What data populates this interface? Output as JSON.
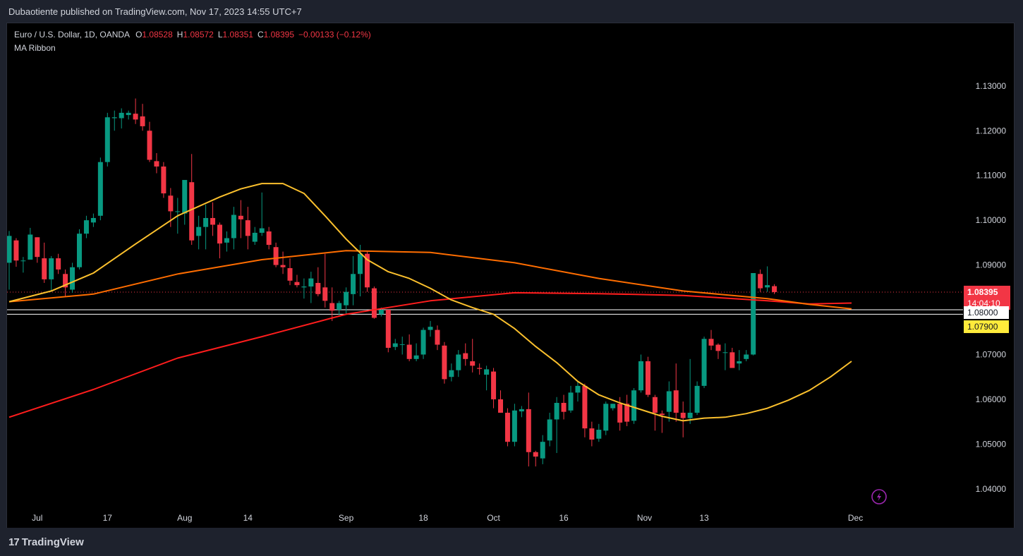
{
  "header": {
    "publisher": "Dubaotiente published on TradingView.com, Nov 17, 2023 14:55 UTC+7"
  },
  "legend": {
    "symbol": "Euro / U.S. Dollar, 1D, OANDA",
    "open_label": "O",
    "open": "1.08528",
    "high_label": "H",
    "high": "1.08572",
    "low_label": "L",
    "low": "1.08351",
    "close_label": "C",
    "close": "1.08395",
    "change": "−0.00133 (−0.12%)",
    "indicator": "MA Ribbon"
  },
  "footer": {
    "brand": "TradingView",
    "brand_icon": "tradingview-logo-icon"
  },
  "colors": {
    "up": "#089981",
    "down": "#f23645",
    "ma_fast": "#fbc02d",
    "ma_mid": "#ff6d00",
    "ma_slow": "#ff1d1d",
    "level_line": "#ffffff",
    "background": "#000000"
  },
  "chart_data": {
    "type": "candlestick",
    "symbol": "EURUSD",
    "timeframe": "1D",
    "x_tick_labels": [
      "Jul",
      "17",
      "Aug",
      "14",
      "Sep",
      "18",
      "Oct",
      "16",
      "Nov",
      "13",
      "Dec"
    ],
    "y_ticks": [
      "1.13000",
      "1.12000",
      "1.11000",
      "1.10000",
      "1.09000",
      "1.07000",
      "1.06000",
      "1.05000",
      "1.04000"
    ],
    "ylim": [
      1.0365,
      1.144
    ],
    "last_price": "1.08395",
    "countdown": "14:04:10",
    "price_levels": [
      {
        "value": 1.08,
        "label": "1.08000",
        "color": "#ffffff"
      },
      {
        "value": 1.079,
        "label": "1.07900",
        "color": "#ffeb3b"
      }
    ],
    "candles": [
      {
        "d": "2023-06-27",
        "o": 1.0905,
        "h": 1.0976,
        "l": 1.0845,
        "c": 1.0965
      },
      {
        "d": "2023-06-28",
        "o": 1.0955,
        "h": 1.096,
        "l": 1.0896,
        "c": 1.091
      },
      {
        "d": "2023-06-29",
        "o": 1.091,
        "h": 1.0918,
        "l": 1.0883,
        "c": 1.091
      },
      {
        "d": "2023-06-30",
        "o": 1.0912,
        "h": 1.0983,
        "l": 1.0915,
        "c": 1.0968
      },
      {
        "d": "2023-07-03",
        "o": 1.0962,
        "h": 1.0962,
        "l": 1.0905,
        "c": 1.0918
      },
      {
        "d": "2023-07-04",
        "o": 1.0915,
        "h": 1.095,
        "l": 1.086,
        "c": 1.0868
      },
      {
        "d": "2023-07-05",
        "o": 1.0868,
        "h": 1.092,
        "l": 1.084,
        "c": 1.0915
      },
      {
        "d": "2023-07-06",
        "o": 1.0915,
        "h": 1.0925,
        "l": 1.088,
        "c": 1.089
      },
      {
        "d": "2023-07-07",
        "o": 1.088,
        "h": 1.089,
        "l": 1.083,
        "c": 1.085
      },
      {
        "d": "2023-07-10",
        "o": 1.0845,
        "h": 1.0905,
        "l": 1.0838,
        "c": 1.0895
      },
      {
        "d": "2023-07-11",
        "o": 1.0895,
        "h": 1.098,
        "l": 1.089,
        "c": 1.097
      },
      {
        "d": "2023-07-12",
        "o": 1.097,
        "h": 1.101,
        "l": 1.096,
        "c": 1.1
      },
      {
        "d": "2023-07-13",
        "o": 1.0995,
        "h": 1.1015,
        "l": 1.0985,
        "c": 1.1005
      },
      {
        "d": "2023-07-14",
        "o": 1.101,
        "h": 1.114,
        "l": 1.1,
        "c": 1.113
      },
      {
        "d": "2023-07-17",
        "o": 1.113,
        "h": 1.124,
        "l": 1.112,
        "c": 1.123
      },
      {
        "d": "2023-07-18",
        "o": 1.1228,
        "h": 1.1245,
        "l": 1.12,
        "c": 1.123
      },
      {
        "d": "2023-07-19",
        "o": 1.1228,
        "h": 1.125,
        "l": 1.1205,
        "c": 1.124
      },
      {
        "d": "2023-07-20",
        "o": 1.1235,
        "h": 1.1245,
        "l": 1.1225,
        "c": 1.124
      },
      {
        "d": "2023-07-21",
        "o": 1.1238,
        "h": 1.1272,
        "l": 1.1215,
        "c": 1.1225
      },
      {
        "d": "2023-07-24",
        "o": 1.1232,
        "h": 1.126,
        "l": 1.12,
        "c": 1.121
      },
      {
        "d": "2023-07-25",
        "o": 1.12,
        "h": 1.122,
        "l": 1.113,
        "c": 1.1135
      },
      {
        "d": "2023-07-26",
        "o": 1.1132,
        "h": 1.115,
        "l": 1.1105,
        "c": 1.112
      },
      {
        "d": "2023-07-27",
        "o": 1.112,
        "h": 1.113,
        "l": 1.105,
        "c": 1.106
      },
      {
        "d": "2023-07-28",
        "o": 1.1055,
        "h": 1.1072,
        "l": 1.0985,
        "c": 1.102
      },
      {
        "d": "2023-07-31",
        "o": 1.102,
        "h": 1.105,
        "l": 1.097,
        "c": 1.102
      },
      {
        "d": "2023-08-01",
        "o": 1.1015,
        "h": 1.108,
        "l": 1.099,
        "c": 1.109
      },
      {
        "d": "2023-08-02",
        "o": 1.1085,
        "h": 1.1148,
        "l": 1.0945,
        "c": 1.0955
      },
      {
        "d": "2023-08-03",
        "o": 1.0965,
        "h": 1.101,
        "l": 1.0935,
        "c": 1.0985
      },
      {
        "d": "2023-08-04",
        "o": 1.0985,
        "h": 1.1035,
        "l": 1.0935,
        "c": 1.1005
      },
      {
        "d": "2023-08-07",
        "o": 1.1005,
        "h": 1.104,
        "l": 1.0965,
        "c": 1.099
      },
      {
        "d": "2023-08-08",
        "o": 1.099,
        "h": 1.0995,
        "l": 1.0915,
        "c": 1.0948
      },
      {
        "d": "2023-08-09",
        "o": 1.095,
        "h": 1.0975,
        "l": 1.093,
        "c": 1.096
      },
      {
        "d": "2023-08-10",
        "o": 1.096,
        "h": 1.103,
        "l": 1.0935,
        "c": 1.1012
      },
      {
        "d": "2023-08-11",
        "o": 1.101,
        "h": 1.1045,
        "l": 1.096,
        "c": 1.1002
      },
      {
        "d": "2023-08-14",
        "o": 1.1,
        "h": 1.103,
        "l": 1.0935,
        "c": 1.0965
      },
      {
        "d": "2023-08-15",
        "o": 1.0952,
        "h": 1.0985,
        "l": 1.0945,
        "c": 1.0972
      },
      {
        "d": "2023-08-16",
        "o": 1.0972,
        "h": 1.1062,
        "l": 1.0965,
        "c": 1.0982
      },
      {
        "d": "2023-08-17",
        "o": 1.0975,
        "h": 1.0985,
        "l": 1.0935,
        "c": 1.0945
      },
      {
        "d": "2023-08-18",
        "o": 1.094,
        "h": 1.095,
        "l": 1.0895,
        "c": 1.09
      },
      {
        "d": "2023-08-21",
        "o": 1.09,
        "h": 1.093,
        "l": 1.088,
        "c": 1.0895
      },
      {
        "d": "2023-08-22",
        "o": 1.0893,
        "h": 1.0915,
        "l": 1.0855,
        "c": 1.0865
      },
      {
        "d": "2023-08-23",
        "o": 1.0862,
        "h": 1.0878,
        "l": 1.085,
        "c": 1.0855
      },
      {
        "d": "2023-08-24",
        "o": 1.085,
        "h": 1.087,
        "l": 1.0825,
        "c": 1.0852
      },
      {
        "d": "2023-08-25",
        "o": 1.0852,
        "h": 1.0885,
        "l": 1.0815,
        "c": 1.087
      },
      {
        "d": "2023-08-28",
        "o": 1.086,
        "h": 1.0895,
        "l": 1.083,
        "c": 1.0835
      },
      {
        "d": "2023-08-29",
        "o": 1.085,
        "h": 1.0925,
        "l": 1.0805,
        "c": 1.082
      },
      {
        "d": "2023-08-30",
        "o": 1.0815,
        "h": 1.085,
        "l": 1.0775,
        "c": 1.0798
      },
      {
        "d": "2023-08-31",
        "o": 1.08,
        "h": 1.082,
        "l": 1.0788,
        "c": 1.0815
      },
      {
        "d": "2023-09-01",
        "o": 1.081,
        "h": 1.085,
        "l": 1.079,
        "c": 1.084
      },
      {
        "d": "2023-09-04",
        "o": 1.0835,
        "h": 1.092,
        "l": 1.081,
        "c": 1.088
      },
      {
        "d": "2023-09-05",
        "o": 1.088,
        "h": 1.0945,
        "l": 1.083,
        "c": 1.0925
      },
      {
        "d": "2023-09-06",
        "o": 1.0925,
        "h": 1.093,
        "l": 1.084,
        "c": 1.085
      },
      {
        "d": "2023-09-07",
        "o": 1.0848,
        "h": 1.0852,
        "l": 1.078,
        "c": 1.0782
      },
      {
        "d": "2023-09-08",
        "o": 1.079,
        "h": 1.0805,
        "l": 1.0785,
        "c": 1.08
      },
      {
        "d": "2023-09-11",
        "o": 1.08,
        "h": 1.08,
        "l": 1.0705,
        "c": 1.0715
      },
      {
        "d": "2023-09-12",
        "o": 1.0717,
        "h": 1.0735,
        "l": 1.071,
        "c": 1.0725
      },
      {
        "d": "2023-09-13",
        "o": 1.0722,
        "h": 1.074,
        "l": 1.07,
        "c": 1.0723
      },
      {
        "d": "2023-09-14",
        "o": 1.0722,
        "h": 1.0745,
        "l": 1.0685,
        "c": 1.069
      },
      {
        "d": "2023-09-15",
        "o": 1.069,
        "h": 1.0725,
        "l": 1.0685,
        "c": 1.0698
      },
      {
        "d": "2023-09-18",
        "o": 1.07,
        "h": 1.076,
        "l": 1.069,
        "c": 1.0755
      },
      {
        "d": "2023-09-19",
        "o": 1.0755,
        "h": 1.0775,
        "l": 1.074,
        "c": 1.0762
      },
      {
        "d": "2023-09-20",
        "o": 1.0755,
        "h": 1.0765,
        "l": 1.071,
        "c": 1.0722
      },
      {
        "d": "2023-09-21",
        "o": 1.072,
        "h": 1.0728,
        "l": 1.0635,
        "c": 1.0645
      },
      {
        "d": "2023-09-22",
        "o": 1.065,
        "h": 1.068,
        "l": 1.064,
        "c": 1.0665
      },
      {
        "d": "2023-09-25",
        "o": 1.0665,
        "h": 1.071,
        "l": 1.065,
        "c": 1.07
      },
      {
        "d": "2023-09-26",
        "o": 1.0703,
        "h": 1.0725,
        "l": 1.0675,
        "c": 1.069
      },
      {
        "d": "2023-09-27",
        "o": 1.0685,
        "h": 1.0735,
        "l": 1.066,
        "c": 1.0675
      },
      {
        "d": "2023-09-28",
        "o": 1.067,
        "h": 1.068,
        "l": 1.0655,
        "c": 1.0668
      },
      {
        "d": "2023-09-29",
        "o": 1.0655,
        "h": 1.0675,
        "l": 1.062,
        "c": 1.0667
      },
      {
        "d": "2023-10-02",
        "o": 1.0662,
        "h": 1.067,
        "l": 1.058,
        "c": 1.06
      },
      {
        "d": "2023-10-03",
        "o": 1.06,
        "h": 1.062,
        "l": 1.057,
        "c": 1.057
      },
      {
        "d": "2023-10-04",
        "o": 1.057,
        "h": 1.058,
        "l": 1.0495,
        "c": 1.0505
      },
      {
        "d": "2023-10-05",
        "o": 1.0505,
        "h": 1.059,
        "l": 1.0495,
        "c": 1.0575
      },
      {
        "d": "2023-10-06",
        "o": 1.0573,
        "h": 1.0585,
        "l": 1.056,
        "c": 1.0578
      },
      {
        "d": "2023-10-09",
        "o": 1.0578,
        "h": 1.0615,
        "l": 1.045,
        "c": 1.0482
      },
      {
        "d": "2023-10-10",
        "o": 1.0482,
        "h": 1.0485,
        "l": 1.045,
        "c": 1.0472
      },
      {
        "d": "2023-10-11",
        "o": 1.0468,
        "h": 1.052,
        "l": 1.0455,
        "c": 1.0505
      },
      {
        "d": "2023-10-12",
        "o": 1.0508,
        "h": 1.057,
        "l": 1.0495,
        "c": 1.0555
      },
      {
        "d": "2023-10-13",
        "o": 1.0555,
        "h": 1.0605,
        "l": 1.048,
        "c": 1.0592
      },
      {
        "d": "2023-10-16",
        "o": 1.0592,
        "h": 1.061,
        "l": 1.0555,
        "c": 1.0572
      },
      {
        "d": "2023-10-17",
        "o": 1.0575,
        "h": 1.063,
        "l": 1.057,
        "c": 1.0615
      },
      {
        "d": "2023-10-18",
        "o": 1.0615,
        "h": 1.064,
        "l": 1.0595,
        "c": 1.063
      },
      {
        "d": "2023-10-19",
        "o": 1.063,
        "h": 1.0635,
        "l": 1.0515,
        "c": 1.0535
      },
      {
        "d": "2023-10-20",
        "o": 1.0535,
        "h": 1.055,
        "l": 1.0495,
        "c": 1.051
      },
      {
        "d": "2023-10-23",
        "o": 1.0512,
        "h": 1.0545,
        "l": 1.0505,
        "c": 1.0532
      },
      {
        "d": "2023-10-24",
        "o": 1.053,
        "h": 1.0595,
        "l": 1.052,
        "c": 1.059
      },
      {
        "d": "2023-10-25",
        "o": 1.058,
        "h": 1.059,
        "l": 1.0575,
        "c": 1.059
      },
      {
        "d": "2023-10-26",
        "o": 1.059,
        "h": 1.0605,
        "l": 1.053,
        "c": 1.0548
      },
      {
        "d": "2023-10-27",
        "o": 1.059,
        "h": 1.061,
        "l": 1.054,
        "c": 1.055
      },
      {
        "d": "2023-10-30",
        "o": 1.0552,
        "h": 1.0625,
        "l": 1.0545,
        "c": 1.062
      },
      {
        "d": "2023-10-31",
        "o": 1.062,
        "h": 1.07,
        "l": 1.0615,
        "c": 1.0685
      },
      {
        "d": "2023-11-01",
        "o": 1.0685,
        "h": 1.0695,
        "l": 1.0605,
        "c": 1.061
      },
      {
        "d": "2023-11-02",
        "o": 1.0605,
        "h": 1.061,
        "l": 1.053,
        "c": 1.057
      },
      {
        "d": "2023-11-03",
        "o": 1.0568,
        "h": 1.0575,
        "l": 1.0525,
        "c": 1.0565
      },
      {
        "d": "2023-11-06",
        "o": 1.0572,
        "h": 1.064,
        "l": 1.055,
        "c": 1.0618
      },
      {
        "d": "2023-11-07",
        "o": 1.062,
        "h": 1.068,
        "l": 1.055,
        "c": 1.057
      },
      {
        "d": "2023-11-08",
        "o": 1.057,
        "h": 1.0595,
        "l": 1.0515,
        "c": 1.0558
      },
      {
        "d": "2023-11-09",
        "o": 1.0558,
        "h": 1.069,
        "l": 1.0545,
        "c": 1.057
      },
      {
        "d": "2023-11-10",
        "o": 1.057,
        "h": 1.064,
        "l": 1.0565,
        "c": 1.063
      },
      {
        "d": "2023-11-13",
        "o": 1.063,
        "h": 1.074,
        "l": 1.0625,
        "c": 1.0735
      },
      {
        "d": "2023-11-14",
        "o": 1.0735,
        "h": 1.0755,
        "l": 1.071,
        "c": 1.072
      },
      {
        "d": "2023-11-15",
        "o": 1.0722,
        "h": 1.0725,
        "l": 1.069,
        "c": 1.0708
      },
      {
        "d": "2023-11-16",
        "o": 1.0705,
        "h": 1.0725,
        "l": 1.0665,
        "c": 1.0705
      },
      {
        "d": "2023-11-17",
        "o": 1.0705,
        "h": 1.0715,
        "l": 1.067,
        "c": 1.067
      },
      {
        "d": "2023-11-20",
        "o": 1.068,
        "h": 1.071,
        "l": 1.0665,
        "c": 1.0685
      },
      {
        "d": "2023-11-21",
        "o": 1.069,
        "h": 1.071,
        "l": 1.0685,
        "c": 1.07
      },
      {
        "d": "2023-11-22",
        "o": 1.07,
        "h": 1.088,
        "l": 1.0698,
        "c": 1.0882
      },
      {
        "d": "2023-11-23",
        "o": 1.088,
        "h": 1.089,
        "l": 1.084,
        "c": 1.0848
      },
      {
        "d": "2023-11-24",
        "o": 1.085,
        "h": 1.0897,
        "l": 1.084,
        "c": 1.0855
      },
      {
        "d": "2023-11-27",
        "o": 1.08528,
        "h": 1.08572,
        "l": 1.08351,
        "c": 1.08395
      }
    ],
    "ma_fast": [
      [
        0,
        1.0818
      ],
      [
        6,
        1.0842
      ],
      [
        12,
        1.0882
      ],
      [
        18,
        1.0947
      ],
      [
        24,
        1.101
      ],
      [
        30,
        1.1052
      ],
      [
        33,
        1.107
      ],
      [
        36,
        1.1082
      ],
      [
        39,
        1.1082
      ],
      [
        42,
        1.106
      ],
      [
        45,
        1.101
      ],
      [
        48,
        1.0958
      ],
      [
        51,
        1.0912
      ],
      [
        54,
        1.0885
      ],
      [
        57,
        1.087
      ],
      [
        60,
        1.0848
      ],
      [
        63,
        1.0822
      ],
      [
        66,
        1.0805
      ],
      [
        69,
        1.079
      ],
      [
        72,
        1.0758
      ],
      [
        75,
        1.0718
      ],
      [
        78,
        1.0682
      ],
      [
        81,
        1.064
      ],
      [
        84,
        1.061
      ],
      [
        87,
        1.0592
      ],
      [
        90,
        1.0577
      ],
      [
        93,
        1.0562
      ],
      [
        96,
        1.0552
      ],
      [
        99,
        1.0558
      ],
      [
        102,
        1.056
      ],
      [
        105,
        1.0568
      ],
      [
        108,
        1.058
      ],
      [
        111,
        1.0598
      ],
      [
        114,
        1.062
      ],
      [
        117,
        1.065
      ],
      [
        120,
        1.0685
      ]
    ],
    "ma_mid": [
      [
        0,
        1.0818
      ],
      [
        12,
        1.0835
      ],
      [
        24,
        1.088
      ],
      [
        36,
        1.0912
      ],
      [
        48,
        1.0932
      ],
      [
        60,
        1.0928
      ],
      [
        72,
        1.0905
      ],
      [
        84,
        1.087
      ],
      [
        96,
        1.0842
      ],
      [
        108,
        1.0825
      ],
      [
        114,
        1.0812
      ],
      [
        120,
        1.0802
      ]
    ],
    "ma_slow": [
      [
        0,
        1.056
      ],
      [
        12,
        1.0622
      ],
      [
        24,
        1.0692
      ],
      [
        36,
        1.074
      ],
      [
        48,
        1.079
      ],
      [
        60,
        1.082
      ],
      [
        72,
        1.0838
      ],
      [
        84,
        1.0836
      ],
      [
        96,
        1.0832
      ],
      [
        108,
        1.082
      ],
      [
        114,
        1.0813
      ],
      [
        120,
        1.0815
      ]
    ]
  }
}
